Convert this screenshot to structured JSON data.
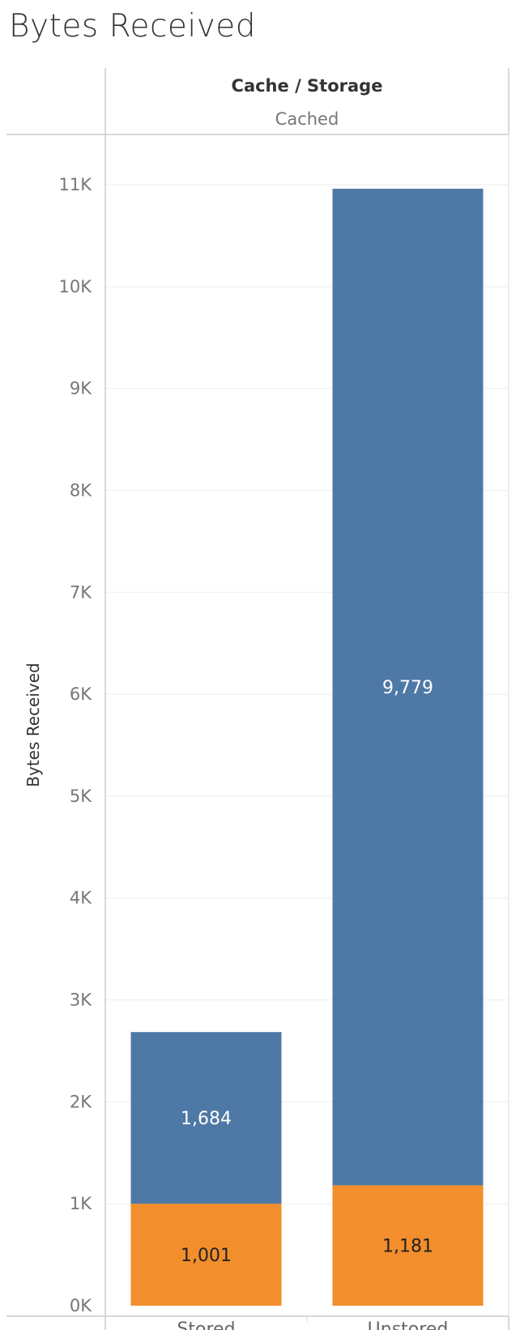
{
  "chart_data": {
    "type": "bar",
    "stacked": true,
    "title": "Bytes Received",
    "column_header": {
      "title": "Cache / Storage",
      "subtitle": "Cached"
    },
    "ylabel": "Bytes Received",
    "xlabel": "",
    "ylim": [
      0,
      11000
    ],
    "yticks": [
      0,
      1000,
      2000,
      3000,
      4000,
      5000,
      6000,
      7000,
      8000,
      9000,
      10000,
      11000
    ],
    "ytick_labels": [
      "0K",
      "1K",
      "2K",
      "3K",
      "4K",
      "5K",
      "6K",
      "7K",
      "8K",
      "9K",
      "10K",
      "11K"
    ],
    "grid": true,
    "categories": [
      "Stored",
      "Unstored"
    ],
    "series": [
      {
        "color": "#f28e2b",
        "label_color": "#222222",
        "values": [
          1001,
          1181
        ],
        "value_labels": [
          "1,001",
          "1,181"
        ]
      },
      {
        "color": "#4e79a7",
        "label_color": "#ffffff",
        "values": [
          1684,
          9779
        ],
        "value_labels": [
          "1,684",
          "9,779"
        ]
      }
    ]
  }
}
